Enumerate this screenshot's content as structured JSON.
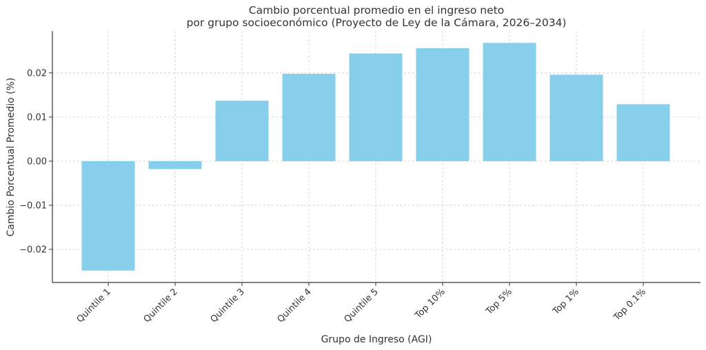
{
  "chart_data": {
    "type": "bar",
    "title_line1": "Cambio porcentual promedio en el ingreso neto",
    "title_line2": "por grupo socioeconómico (Proyecto de Ley de la Cámara, 2026–2034)",
    "xlabel": "Grupo de Ingreso (AGI)",
    "ylabel": "Cambio Porcentual Promedio (%)",
    "categories": [
      "Quintile 1",
      "Quintile 2",
      "Quintile 3",
      "Quintile 4",
      "Quintile 5",
      "Top 10%",
      "Top 5%",
      "Top 1%",
      "Top 0.1%"
    ],
    "values": [
      -0.0248,
      -0.0018,
      0.0137,
      0.0198,
      0.0244,
      0.0256,
      0.0268,
      0.0196,
      0.0129
    ],
    "ylim": [
      -0.0275,
      0.0295
    ],
    "yticks": [
      -0.02,
      -0.01,
      0.0,
      0.01,
      0.02
    ],
    "ytick_labels": [
      "−0.02",
      "−0.01",
      "0.00",
      "0.01",
      "0.02"
    ],
    "bar_color": "#87ceeb",
    "grid": true
  }
}
